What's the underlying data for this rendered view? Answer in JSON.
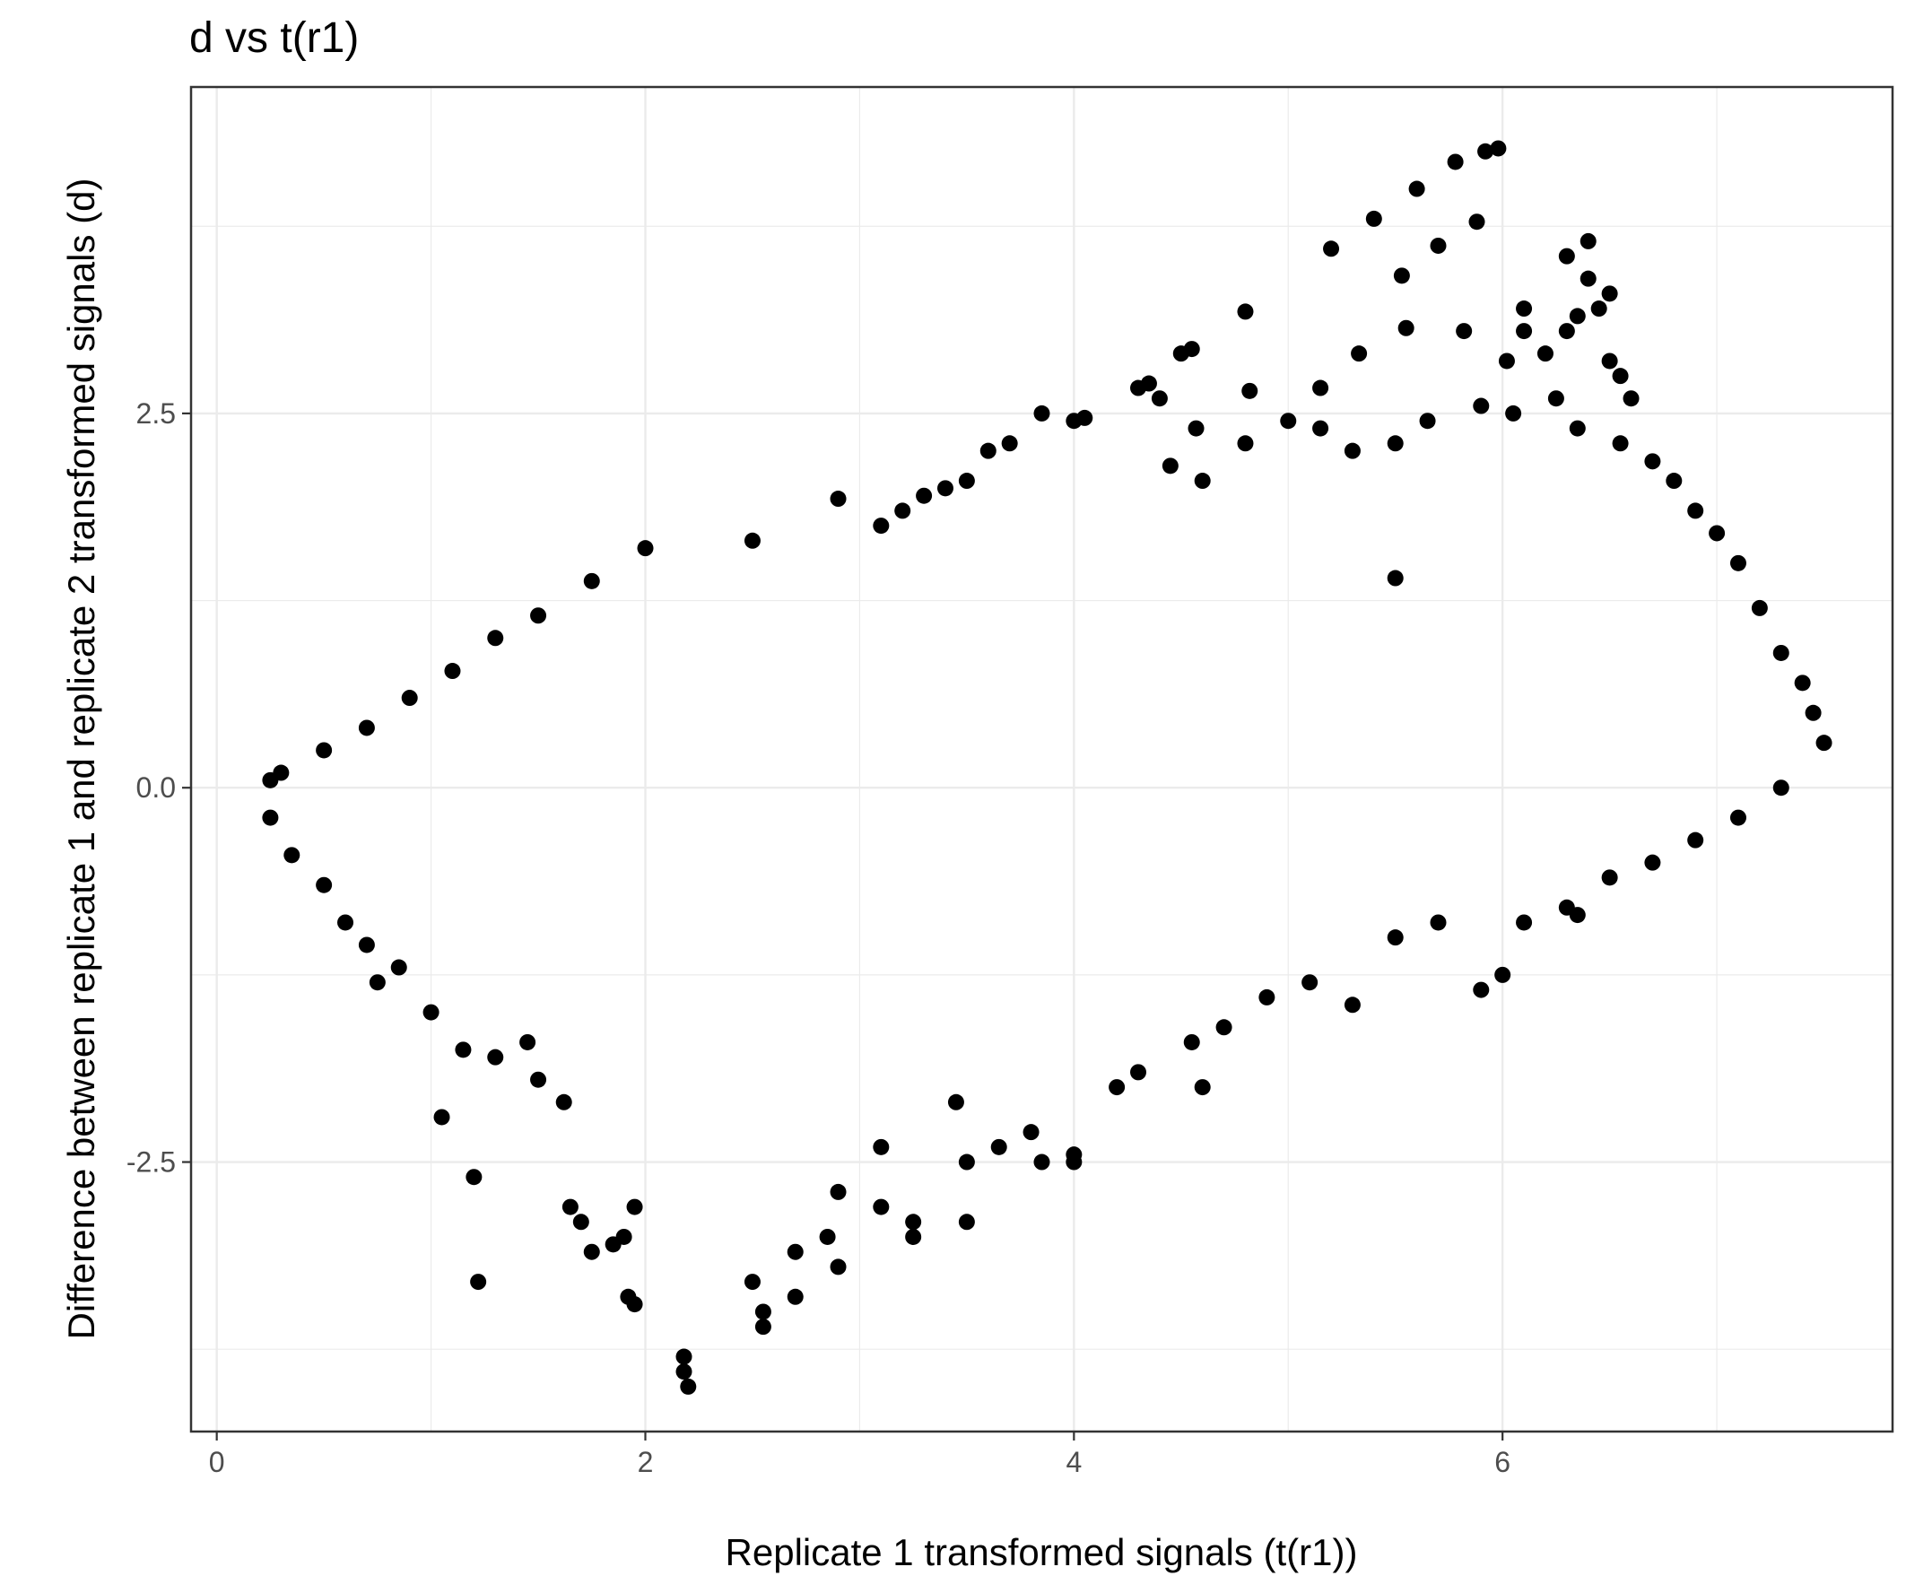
{
  "chart_data": {
    "type": "scatter",
    "title": "d vs t(r1)",
    "xlabel": "Replicate 1 transformed signals (t(r1))",
    "ylabel": "Difference between replicate 1 and replicate 2 transformed signals (d)",
    "xlim": [
      -0.12,
      7.82
    ],
    "ylim": [
      -4.3,
      4.68
    ],
    "x_ticks": [
      0,
      2,
      4,
      6
    ],
    "x_tick_labels": [
      "0",
      "2",
      "4",
      "6"
    ],
    "y_ticks": [
      -2.5,
      0.0,
      2.5
    ],
    "y_tick_labels": [
      "-2.5",
      "0.0",
      "2.5"
    ],
    "grid": true,
    "legend": "none",
    "colors": {
      "points": "#000000",
      "grid": "#ebebeb",
      "panel_border": "#333333",
      "text": "#000000",
      "tick_text": "#4d4d4d"
    },
    "series": [
      {
        "values_note_skip": false,
        "points": [
          [
            5.4,
            3.8
          ],
          [
            5.6,
            4.0
          ],
          [
            5.78,
            4.18
          ],
          [
            5.92,
            4.25
          ],
          [
            5.98,
            4.27
          ],
          [
            5.2,
            3.6
          ],
          [
            5.7,
            3.62
          ],
          [
            5.88,
            3.78
          ],
          [
            5.53,
            3.42
          ],
          [
            5.55,
            3.07
          ],
          [
            5.82,
            3.05
          ],
          [
            4.8,
            3.18
          ],
          [
            4.82,
            2.65
          ],
          [
            5.15,
            2.67
          ],
          [
            5.33,
            2.9
          ],
          [
            4.55,
            2.93
          ],
          [
            4.5,
            2.9
          ],
          [
            4.0,
            2.45
          ],
          [
            4.05,
            2.47
          ],
          [
            4.4,
            2.6
          ],
          [
            4.3,
            2.67
          ],
          [
            4.35,
            2.7
          ],
          [
            4.57,
            2.4
          ],
          [
            3.85,
            2.5
          ],
          [
            3.6,
            2.25
          ],
          [
            3.7,
            2.3
          ],
          [
            3.3,
            1.95
          ],
          [
            2.9,
            1.93
          ],
          [
            6.4,
            3.65
          ],
          [
            6.3,
            3.55
          ],
          [
            6.4,
            3.4
          ],
          [
            6.5,
            3.3
          ],
          [
            6.45,
            3.2
          ],
          [
            6.1,
            3.2
          ],
          [
            6.3,
            3.05
          ],
          [
            6.35,
            3.15
          ],
          [
            6.5,
            2.85
          ],
          [
            6.55,
            2.75
          ],
          [
            6.6,
            2.6
          ],
          [
            6.2,
            2.9
          ],
          [
            6.1,
            3.05
          ],
          [
            6.02,
            2.85
          ],
          [
            6.25,
            2.6
          ],
          [
            5.9,
            2.55
          ],
          [
            6.05,
            2.5
          ],
          [
            4.6,
            2.05
          ],
          [
            4.45,
            2.15
          ],
          [
            4.8,
            2.3
          ],
          [
            5.0,
            2.45
          ],
          [
            5.15,
            2.4
          ],
          [
            5.3,
            2.25
          ],
          [
            5.5,
            2.3
          ],
          [
            5.65,
            2.45
          ],
          [
            6.35,
            2.4
          ],
          [
            6.55,
            2.3
          ],
          [
            6.7,
            2.18
          ],
          [
            6.8,
            2.05
          ],
          [
            6.9,
            1.85
          ],
          [
            7.0,
            1.7
          ],
          [
            7.1,
            1.5
          ],
          [
            7.2,
            1.2
          ],
          [
            7.3,
            0.9
          ],
          [
            7.4,
            0.7
          ],
          [
            7.45,
            0.5
          ],
          [
            7.5,
            0.3
          ],
          [
            5.5,
            1.4
          ],
          [
            3.1,
            1.75
          ],
          [
            3.2,
            1.85
          ],
          [
            3.4,
            2.0
          ],
          [
            3.5,
            2.05
          ],
          [
            2.5,
            1.65
          ],
          [
            2.0,
            1.6
          ],
          [
            1.75,
            1.38
          ],
          [
            1.5,
            1.15
          ],
          [
            1.3,
            1.0
          ],
          [
            1.1,
            0.78
          ],
          [
            0.9,
            0.6
          ],
          [
            0.7,
            0.4
          ],
          [
            0.5,
            0.25
          ],
          [
            0.3,
            0.1
          ],
          [
            0.25,
            0.05
          ],
          [
            0.25,
            -0.2
          ],
          [
            0.35,
            -0.45
          ],
          [
            0.5,
            -0.65
          ],
          [
            0.6,
            -0.9
          ],
          [
            0.7,
            -1.05
          ],
          [
            0.75,
            -1.3
          ],
          [
            0.85,
            -1.2
          ],
          [
            1.0,
            -1.5
          ],
          [
            1.05,
            -2.2
          ],
          [
            1.2,
            -2.6
          ],
          [
            1.22,
            -3.3
          ],
          [
            1.15,
            -1.75
          ],
          [
            1.3,
            -1.8
          ],
          [
            1.45,
            -1.7
          ],
          [
            1.5,
            -1.95
          ],
          [
            1.62,
            -2.1
          ],
          [
            1.65,
            -2.8
          ],
          [
            1.7,
            -2.9
          ],
          [
            1.75,
            -3.1
          ],
          [
            1.85,
            -3.05
          ],
          [
            1.9,
            -3.0
          ],
          [
            1.95,
            -2.8
          ],
          [
            1.92,
            -3.4
          ],
          [
            1.95,
            -3.45
          ],
          [
            2.18,
            -3.8
          ],
          [
            2.18,
            -3.9
          ],
          [
            2.2,
            -4.0
          ],
          [
            2.5,
            -3.3
          ],
          [
            2.55,
            -3.5
          ],
          [
            2.55,
            -3.6
          ],
          [
            2.7,
            -3.1
          ],
          [
            2.7,
            -3.4
          ],
          [
            2.85,
            -3.0
          ],
          [
            2.9,
            -2.7
          ],
          [
            2.9,
            -3.2
          ],
          [
            3.1,
            -2.4
          ],
          [
            3.1,
            -2.8
          ],
          [
            3.25,
            -2.9
          ],
          [
            3.25,
            -3.0
          ],
          [
            3.45,
            -2.1
          ],
          [
            3.5,
            -2.5
          ],
          [
            3.5,
            -2.9
          ],
          [
            3.65,
            -2.4
          ],
          [
            3.8,
            -2.3
          ],
          [
            3.85,
            -2.5
          ],
          [
            4.0,
            -2.45
          ],
          [
            4.0,
            -2.5
          ],
          [
            4.2,
            -2.0
          ],
          [
            4.3,
            -1.9
          ],
          [
            4.55,
            -1.7
          ],
          [
            4.6,
            -2.0
          ],
          [
            4.7,
            -1.6
          ],
          [
            4.9,
            -1.4
          ],
          [
            5.1,
            -1.3
          ],
          [
            5.3,
            -1.45
          ],
          [
            5.5,
            -1.0
          ],
          [
            5.7,
            -0.9
          ],
          [
            5.9,
            -1.35
          ],
          [
            6.0,
            -1.25
          ],
          [
            6.1,
            -0.9
          ],
          [
            6.3,
            -0.8
          ],
          [
            6.35,
            -0.85
          ],
          [
            6.5,
            -0.6
          ],
          [
            6.7,
            -0.5
          ],
          [
            6.9,
            -0.35
          ],
          [
            7.1,
            -0.2
          ],
          [
            7.3,
            0.0
          ]
        ]
      }
    ]
  }
}
